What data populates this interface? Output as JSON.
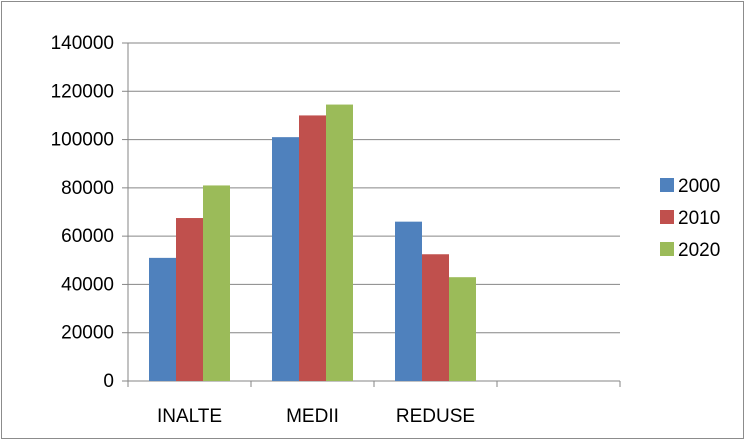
{
  "chart_data": {
    "type": "bar",
    "title": "",
    "xlabel": "",
    "ylabel": "",
    "categories": [
      "INALTE",
      "MEDII",
      "REDUSE",
      ""
    ],
    "series": [
      {
        "name": "2000",
        "color": "#4f81bd",
        "values": [
          51000,
          101000,
          66000,
          null
        ]
      },
      {
        "name": "2010",
        "color": "#c0504d",
        "values": [
          67500,
          110000,
          52500,
          null
        ]
      },
      {
        "name": "2020",
        "color": "#9bbb59",
        "values": [
          81000,
          114500,
          43000,
          null
        ]
      }
    ],
    "ylim": [
      0,
      140000
    ],
    "yticks": [
      "0",
      "20000",
      "40000",
      "60000",
      "80000",
      "100000",
      "120000",
      "140000"
    ],
    "grid": true,
    "legend": "right"
  }
}
